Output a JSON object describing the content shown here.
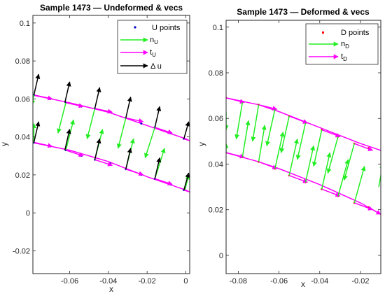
{
  "colors": {
    "u_points": "#0000cc",
    "d_points": "#ff0000",
    "normal": "#22ee22",
    "tangent": "#ff00ff",
    "delta": "#000000"
  },
  "chart_data": [
    {
      "type": "scatter",
      "title": "Sample 1473 — Undeformed & vecs",
      "xlabel": "x",
      "ylabel": "y",
      "xlim": [
        -0.079,
        0.002
      ],
      "ylim": [
        -0.032,
        0.104
      ],
      "xticks": [
        -0.06,
        -0.04,
        -0.02,
        0
      ],
      "xtick_labels": [
        "-0.06",
        "-0.04",
        "-0.02",
        "0"
      ],
      "yticks": [
        -0.02,
        0,
        0.02,
        0.04,
        0.06,
        0.08,
        0.1
      ],
      "ytick_labels": [
        "-0.02",
        "0",
        "0.02",
        "0.04",
        "0.06",
        "0.08",
        "0.1"
      ],
      "legend": {
        "placement": "top-right",
        "entries": [
          {
            "kind": "point",
            "color": "u_points",
            "label": "U points"
          },
          {
            "kind": "arrow",
            "color": "normal",
            "label": "n",
            "sub": "U"
          },
          {
            "kind": "arrow",
            "color": "tangent",
            "label": "t",
            "sub": "U"
          },
          {
            "kind": "arrow",
            "color": "delta",
            "label": "Δ u",
            "sub": ""
          }
        ]
      },
      "series": [
        {
          "type": "curve",
          "color": "tangent",
          "points": [
            [
              -0.079,
              0.062
            ],
            [
              -0.06,
              0.058
            ],
            [
              -0.04,
              0.053
            ],
            [
              -0.02,
              0.046
            ],
            [
              0,
              0.039
            ],
            [
              0.002,
              0.038
            ]
          ]
        },
        {
          "type": "curve",
          "color": "tangent",
          "points": [
            [
              -0.079,
              0.037
            ],
            [
              -0.06,
              0.033
            ],
            [
              -0.04,
              0.027
            ],
            [
              -0.02,
              0.019
            ],
            [
              0,
              0.012
            ],
            [
              0.002,
              0.011
            ]
          ]
        },
        {
          "type": "points",
          "color": "u_points",
          "points": [
            [
              -0.0785,
              0.062
            ],
            [
              -0.07,
              0.06
            ],
            [
              -0.062,
              0.058
            ],
            [
              -0.054,
              0.056
            ],
            [
              -0.047,
              0.055
            ],
            [
              -0.039,
              0.053
            ],
            [
              -0.031,
              0.05
            ],
            [
              -0.023,
              0.047
            ],
            [
              -0.016,
              0.045
            ],
            [
              -0.008,
              0.042
            ],
            [
              -0.001,
              0.039
            ],
            [
              -0.0785,
              0.037
            ],
            [
              -0.07,
              0.035
            ],
            [
              -0.062,
              0.033
            ],
            [
              -0.054,
              0.03
            ],
            [
              -0.047,
              0.028
            ],
            [
              -0.039,
              0.026
            ],
            [
              -0.031,
              0.023
            ],
            [
              -0.023,
              0.02
            ],
            [
              -0.016,
              0.018
            ],
            [
              -0.008,
              0.015
            ],
            [
              -0.001,
              0.012
            ]
          ]
        },
        {
          "type": "arrows",
          "color": "tangent",
          "vectors": [
            [
              -0.078,
              0.062,
              0.009,
              -0.002
            ],
            [
              -0.062,
              0.058,
              0.009,
              -0.002
            ],
            [
              -0.047,
              0.055,
              0.009,
              -0.002
            ],
            [
              -0.031,
              0.05,
              0.009,
              -0.002
            ],
            [
              -0.016,
              0.045,
              0.009,
              -0.003
            ],
            [
              -0.001,
              0.039,
              0.006,
              -0.002
            ],
            [
              -0.078,
              0.037,
              0.009,
              -0.002
            ],
            [
              -0.062,
              0.033,
              0.009,
              -0.003
            ],
            [
              -0.047,
              0.028,
              0.009,
              -0.003
            ],
            [
              -0.031,
              0.023,
              0.009,
              -0.003
            ],
            [
              -0.016,
              0.018,
              0.009,
              -0.003
            ],
            [
              -0.001,
              0.012,
              0.006,
              -0.002
            ]
          ]
        },
        {
          "type": "arrows",
          "color": "normal",
          "vectors": [
            [
              -0.0785,
              0.062,
              -0.001,
              -0.005
            ],
            [
              -0.062,
              0.058,
              -0.004,
              -0.016
            ],
            [
              -0.047,
              0.055,
              -0.004,
              -0.016
            ],
            [
              -0.031,
              0.05,
              -0.004,
              -0.016
            ],
            [
              -0.016,
              0.045,
              -0.005,
              -0.016
            ],
            [
              -0.0785,
              0.037,
              0,
              0.01
            ],
            [
              -0.062,
              0.033,
              0.004,
              0.016
            ],
            [
              -0.047,
              0.028,
              0.004,
              0.016
            ],
            [
              -0.031,
              0.023,
              0.004,
              0.016
            ],
            [
              -0.016,
              0.018,
              0.005,
              0.016
            ],
            [
              -0.0005,
              0.012,
              0.002,
              0.008
            ]
          ]
        },
        {
          "type": "arrows",
          "color": "delta",
          "vectors": [
            [
              -0.0785,
              0.062,
              0.0025,
              0.011
            ],
            [
              -0.0625,
              0.058,
              0.0025,
              0.011
            ],
            [
              -0.047,
              0.055,
              0.0025,
              0.011
            ],
            [
              -0.031,
              0.05,
              0.0025,
              0.011
            ],
            [
              -0.016,
              0.045,
              0.0025,
              0.011
            ],
            [
              -0.001,
              0.039,
              0.0025,
              0.009
            ],
            [
              -0.0785,
              0.037,
              0.0025,
              0.011
            ],
            [
              -0.0625,
              0.033,
              0.0025,
              0.011
            ],
            [
              -0.047,
              0.028,
              0.0025,
              0.011
            ],
            [
              -0.031,
              0.023,
              0.0025,
              0.011
            ],
            [
              -0.016,
              0.018,
              0.0025,
              0.011
            ],
            [
              -0.001,
              0.012,
              0.0025,
              0.009
            ]
          ]
        }
      ]
    },
    {
      "type": "scatter",
      "title": "Sample 1473 — Deformed & vecs",
      "xlabel": "x",
      "ylabel": "y",
      "xlim": [
        -0.086,
        -0.01
      ],
      "ylim": [
        -0.008,
        0.103
      ],
      "xticks": [
        -0.08,
        -0.06,
        -0.04,
        -0.02
      ],
      "xtick_labels": [
        "-0.08",
        "-0.06",
        "-0.04",
        "-0.02"
      ],
      "yticks": [
        0,
        0.02,
        0.04,
        0.06,
        0.08,
        0.1
      ],
      "ytick_labels": [
        "0",
        "0.02",
        "0.04",
        "0.06",
        "0.08",
        "0.1"
      ],
      "legend": {
        "placement": "top-right",
        "entries": [
          {
            "kind": "point",
            "color": "d_points",
            "label": "D points"
          },
          {
            "kind": "arrow",
            "color": "normal",
            "label": "n",
            "sub": "D"
          },
          {
            "kind": "arrow",
            "color": "tangent",
            "label": "t",
            "sub": "D"
          }
        ]
      },
      "series": [
        {
          "type": "curve",
          "color": "tangent",
          "points": [
            [
              -0.086,
              0.069
            ],
            [
              -0.07,
              0.066
            ],
            [
              -0.06,
              0.063
            ],
            [
              -0.04,
              0.056
            ],
            [
              -0.02,
              0.049
            ],
            [
              -0.01,
              0.046
            ]
          ]
        },
        {
          "type": "curve",
          "color": "tangent",
          "points": [
            [
              -0.086,
              0.045
            ],
            [
              -0.07,
              0.041
            ],
            [
              -0.06,
              0.038
            ],
            [
              -0.04,
              0.031
            ],
            [
              -0.02,
              0.023
            ],
            [
              -0.01,
              0.018
            ]
          ]
        },
        {
          "type": "points",
          "color": "d_points",
          "points": [
            [
              -0.086,
              0.069
            ],
            [
              -0.078,
              0.067
            ],
            [
              -0.07,
              0.066
            ],
            [
              -0.062,
              0.064
            ],
            [
              -0.055,
              0.061
            ],
            [
              -0.047,
              0.058
            ],
            [
              -0.039,
              0.055
            ],
            [
              -0.031,
              0.052
            ],
            [
              -0.023,
              0.049
            ],
            [
              -0.016,
              0.047
            ],
            [
              -0.086,
              0.045
            ],
            [
              -0.078,
              0.043
            ],
            [
              -0.07,
              0.041
            ],
            [
              -0.062,
              0.038
            ],
            [
              -0.055,
              0.035
            ],
            [
              -0.047,
              0.032
            ],
            [
              -0.039,
              0.029
            ],
            [
              -0.031,
              0.026
            ],
            [
              -0.023,
              0.023
            ],
            [
              -0.016,
              0.021
            ]
          ]
        },
        {
          "type": "arrows",
          "color": "tangent",
          "vectors": [
            [
              -0.086,
              0.069,
              0.009,
              -0.002
            ],
            [
              -0.07,
              0.066,
              0.009,
              -0.002
            ],
            [
              -0.055,
              0.061,
              0.009,
              -0.003
            ],
            [
              -0.039,
              0.055,
              0.009,
              -0.003
            ],
            [
              -0.023,
              0.049,
              0.009,
              -0.003
            ],
            [
              -0.086,
              0.045,
              0.009,
              -0.002
            ],
            [
              -0.07,
              0.041,
              0.009,
              -0.003
            ],
            [
              -0.055,
              0.035,
              0.009,
              -0.003
            ],
            [
              -0.039,
              0.029,
              0.009,
              -0.003
            ],
            [
              -0.023,
              0.023,
              0.009,
              -0.003
            ],
            [
              -0.016,
              0.021,
              0.006,
              -0.003
            ]
          ]
        },
        {
          "type": "arrows",
          "color": "normal",
          "vectors": [
            [
              -0.086,
              0.063,
              0,
              -0.008
            ],
            [
              -0.078,
              0.067,
              -0.003,
              -0.016
            ],
            [
              -0.07,
              0.066,
              -0.003,
              -0.016
            ],
            [
              -0.062,
              0.064,
              -0.004,
              -0.016
            ],
            [
              -0.055,
              0.061,
              -0.004,
              -0.016
            ],
            [
              -0.047,
              0.058,
              -0.004,
              -0.016
            ],
            [
              -0.039,
              0.055,
              -0.004,
              -0.016
            ],
            [
              -0.031,
              0.052,
              -0.005,
              -0.016
            ],
            [
              -0.023,
              0.049,
              -0.005,
              -0.016
            ],
            [
              -0.086,
              0.045,
              0,
              0.004
            ],
            [
              -0.078,
              0.043,
              0.003,
              0.016
            ],
            [
              -0.07,
              0.041,
              0.003,
              0.016
            ],
            [
              -0.062,
              0.038,
              0.004,
              0.016
            ],
            [
              -0.055,
              0.035,
              0.004,
              0.016
            ],
            [
              -0.047,
              0.032,
              0.004,
              0.016
            ],
            [
              -0.039,
              0.029,
              0.004,
              0.016
            ],
            [
              -0.031,
              0.026,
              0.005,
              0.016
            ],
            [
              -0.023,
              0.023,
              0.005,
              0.016
            ],
            [
              -0.011,
              0.03,
              0.002,
              0.01
            ]
          ]
        }
      ]
    }
  ]
}
